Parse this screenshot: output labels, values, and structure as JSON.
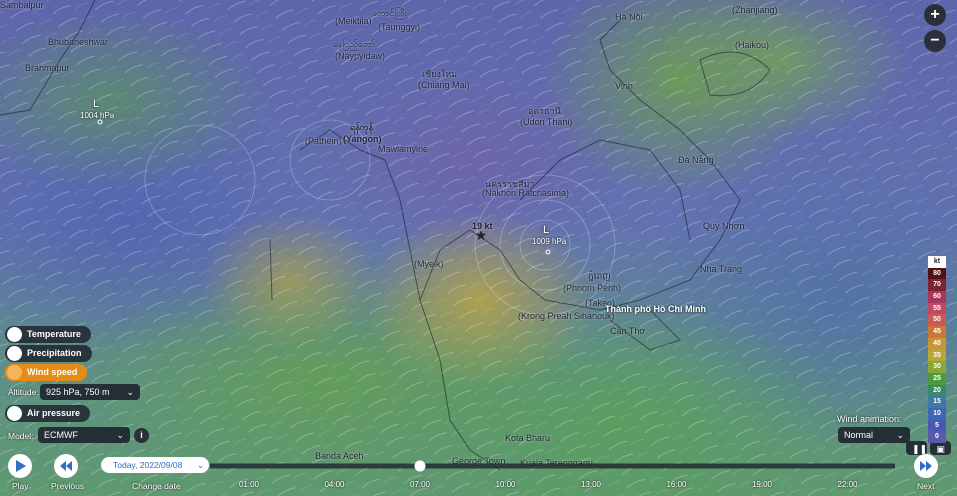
{
  "map_labels": [
    "Sambalpur",
    "Bhubaneshwar",
    "Brahmapur",
    "L",
    "1004 hPa",
    "(Meiktila)",
    "တောင်ကြီး",
    "(Taunggyi)",
    "နေပြည်တော်",
    "(Naypyidaw)",
    "เชียงใหม่",
    "(Chiang Mai)",
    "Hà Nội",
    "(Zhanjiang)",
    "(Haikou)",
    "Vinh",
    "อุดรธานี",
    "(Udon Thani)",
    "(Pathein)",
    "ရန်ကုန်",
    "(Yangon)",
    "Mawlamyine",
    "Đà Nẵng",
    "นครราชสีมา",
    "(Nakhon Ratchasima)",
    "19 kt",
    "L",
    "1009 hPa",
    "Quy Nhơn",
    "(Myeik)",
    "Nha Trang",
    "ភ្នំពេញ",
    "(Phnom Penh)",
    "(Takeo)",
    "Thành phố Hồ Chí Minh",
    "(Krong Preah Sihanouk)",
    "Cần Thơ",
    "Kota Bharu",
    "Banda Aceh",
    "George Town",
    "Kuala Terengganu"
  ],
  "layers": [
    "Temperature",
    "Precipitation",
    "Wind speed",
    "Air pressure"
  ],
  "altitude": {
    "label": "Altitude:",
    "value": "925 hPa, 750 m"
  },
  "model": {
    "label": "Model:",
    "value": "ECMWF",
    "info": "i"
  },
  "zoom": [
    "+",
    "−"
  ],
  "animation": {
    "label": "Wind animation:",
    "value": "Normal"
  },
  "timeline": {
    "play": "Play",
    "previous": "Previous",
    "date": "Today, 2022/09/08",
    "change_date": "Change date",
    "next": "Next",
    "times": [
      "01:00",
      "04:00",
      "07:00",
      "10:00",
      "13:00",
      "16:00",
      "19:00",
      "22:00"
    ]
  },
  "legend": {
    "unit": "kt",
    "items": [
      {
        "value": 80,
        "color": "#4e1212"
      },
      {
        "value": 70,
        "color": "#7a2434"
      },
      {
        "value": 60,
        "color": "#a8385a"
      },
      {
        "value": 55,
        "color": "#c04a64"
      },
      {
        "value": 50,
        "color": "#c95a58"
      },
      {
        "value": 45,
        "color": "#c9783a"
      },
      {
        "value": 40,
        "color": "#c9943a"
      },
      {
        "value": 35,
        "color": "#b8a83a"
      },
      {
        "value": 30,
        "color": "#8aa83a"
      },
      {
        "value": 25,
        "color": "#4e9a3c"
      },
      {
        "value": 20,
        "color": "#3a8a6a"
      },
      {
        "value": 15,
        "color": "#3a7aa4"
      },
      {
        "value": 10,
        "color": "#3e66b4"
      },
      {
        "value": 5,
        "color": "#4a58b4"
      },
      {
        "value": 0,
        "color": "#5a5aa8"
      }
    ]
  }
}
